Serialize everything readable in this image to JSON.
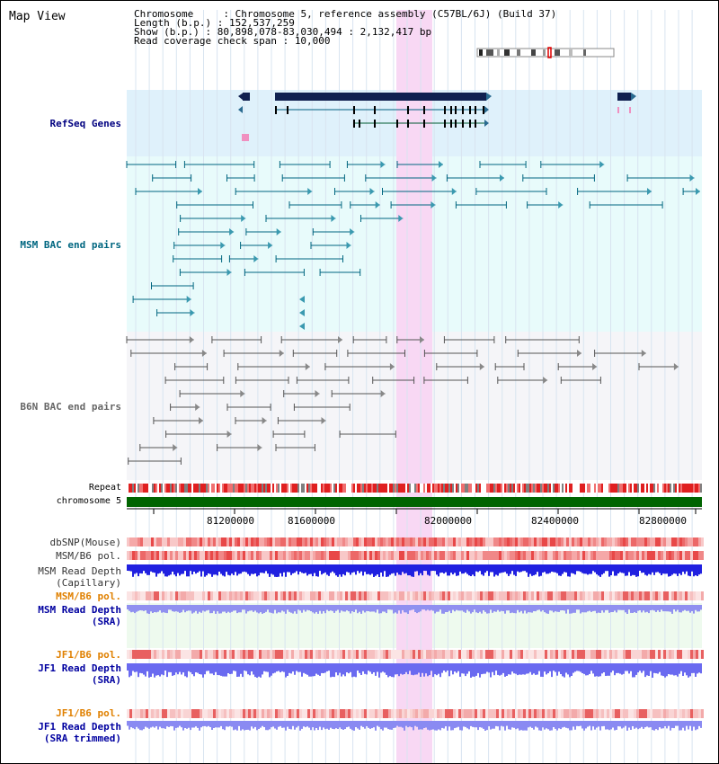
{
  "window": {
    "title": "Map View"
  },
  "header": {
    "chromosome_label": "Chromosome     : ",
    "chromosome_value": "Chromosome 5, reference assembly (C57BL/6J) (Build 37)",
    "length_label": "Length (b.p.) : ",
    "length_value": "152,537,259",
    "show_label": "Show (b.p.) : ",
    "show_value": "80,898,078-83,030,494 : 2,132,417 bp",
    "span_label": "Read coverage check span : ",
    "span_value": "10,000"
  },
  "tracks": {
    "refseq": {
      "label": "RefSeq Genes",
      "color": "#000080"
    },
    "msm_bac": {
      "label": "MSM BAC end pairs",
      "color": "#006680"
    },
    "b6n_bac": {
      "label": "B6N BAC end pairs",
      "color": "#666666"
    },
    "repeat": {
      "label": "Repeat"
    },
    "chromosome": {
      "label": "chromosome 5"
    },
    "dbsnp": {
      "label": "dbSNP(Mouse)"
    },
    "msm_b6_pol_1": {
      "label": "MSM/B6 pol."
    },
    "msm_depth_cap": {
      "label": "MSM Read Depth",
      "label2": "(Capillary)"
    },
    "msm_b6_pol_2": {
      "label": "MSM/B6 pol.",
      "color": "#e08000"
    },
    "msm_depth_sra": {
      "label": "MSM Read Depth",
      "label2": "(SRA)",
      "color": "#0000a0"
    },
    "jf1_b6_pol_1": {
      "label": "JF1/B6 pol.",
      "color": "#e08000"
    },
    "jf1_depth_sra": {
      "label": "JF1 Read Depth",
      "label2": "(SRA)",
      "color": "#0000a0"
    },
    "jf1_b6_pol_2": {
      "label": "JF1/B6 pol.",
      "color": "#e08000"
    },
    "jf1_depth_trim": {
      "label": "JF1 Read Depth",
      "label2": "(SRA trimmed)",
      "color": "#0000a0"
    }
  },
  "axis": {
    "ticks": [
      {
        "label": "81200000"
      },
      {
        "label": "81600000"
      },
      {
        "label": "82000000"
      },
      {
        "label": "82400000"
      },
      {
        "label": "82800000"
      }
    ]
  },
  "highlight": {
    "color": "#f8d8f4"
  }
}
